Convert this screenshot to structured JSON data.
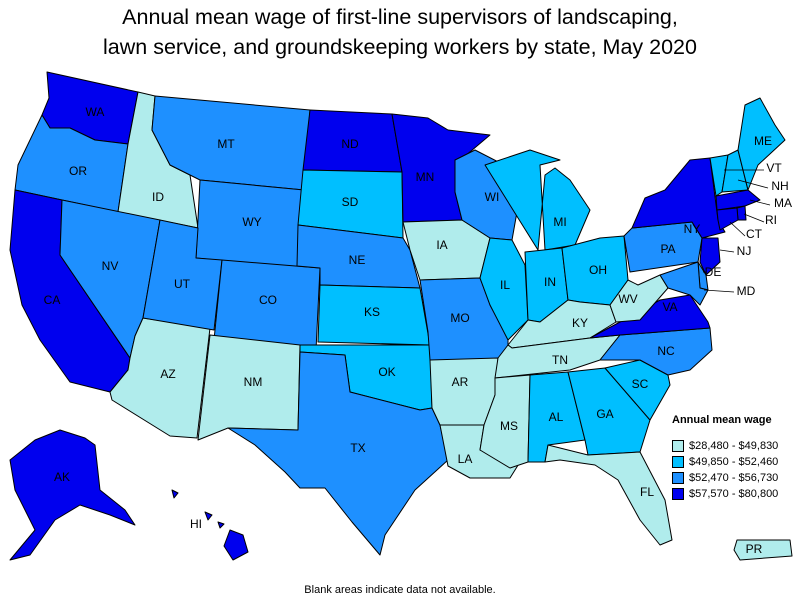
{
  "title_line1": "Annual mean wage of first-line supervisors of landscaping,",
  "title_line2": "lawn service, and groundskeeping workers by state, May 2020",
  "legend": {
    "title": "Annual mean wage",
    "items": [
      {
        "label": "$28,480 - $49,830",
        "color": "#b0ecec"
      },
      {
        "label": "$49,850 - $52,460",
        "color": "#00bfff"
      },
      {
        "label": "$52,470 - $56,730",
        "color": "#1e90ff"
      },
      {
        "label": "$57,570 - $80,800",
        "color": "#0000ee"
      }
    ]
  },
  "footnote": "Blank areas indicate data not available.",
  "states": [
    {
      "abbr": "WA",
      "tier": 3
    },
    {
      "abbr": "OR",
      "tier": 2
    },
    {
      "abbr": "CA",
      "tier": 3
    },
    {
      "abbr": "ID",
      "tier": 0
    },
    {
      "abbr": "NV",
      "tier": 2
    },
    {
      "abbr": "AZ",
      "tier": 0
    },
    {
      "abbr": "MT",
      "tier": 2
    },
    {
      "abbr": "WY",
      "tier": 2
    },
    {
      "abbr": "UT",
      "tier": 2
    },
    {
      "abbr": "CO",
      "tier": 2
    },
    {
      "abbr": "NM",
      "tier": 0
    },
    {
      "abbr": "ND",
      "tier": 3
    },
    {
      "abbr": "SD",
      "tier": 1
    },
    {
      "abbr": "NE",
      "tier": 2
    },
    {
      "abbr": "KS",
      "tier": 1
    },
    {
      "abbr": "OK",
      "tier": 1
    },
    {
      "abbr": "TX",
      "tier": 2
    },
    {
      "abbr": "MN",
      "tier": 3
    },
    {
      "abbr": "IA",
      "tier": 0
    },
    {
      "abbr": "MO",
      "tier": 2
    },
    {
      "abbr": "AR",
      "tier": 0
    },
    {
      "abbr": "LA",
      "tier": 0
    },
    {
      "abbr": "WI",
      "tier": 2
    },
    {
      "abbr": "IL",
      "tier": 1
    },
    {
      "abbr": "MI",
      "tier": 1
    },
    {
      "abbr": "IN",
      "tier": 1
    },
    {
      "abbr": "OH",
      "tier": 1
    },
    {
      "abbr": "KY",
      "tier": 0
    },
    {
      "abbr": "TN",
      "tier": 0
    },
    {
      "abbr": "MS",
      "tier": 0
    },
    {
      "abbr": "AL",
      "tier": 1
    },
    {
      "abbr": "GA",
      "tier": 1
    },
    {
      "abbr": "FL",
      "tier": 0
    },
    {
      "abbr": "SC",
      "tier": 1
    },
    {
      "abbr": "NC",
      "tier": 2
    },
    {
      "abbr": "VA",
      "tier": 3
    },
    {
      "abbr": "WV",
      "tier": 0
    },
    {
      "abbr": "PA",
      "tier": 2
    },
    {
      "abbr": "NY",
      "tier": 3
    },
    {
      "abbr": "VT",
      "tier": 1
    },
    {
      "abbr": "NH",
      "tier": 1
    },
    {
      "abbr": "ME",
      "tier": 1
    },
    {
      "abbr": "MA",
      "tier": 3
    },
    {
      "abbr": "RI",
      "tier": 3
    },
    {
      "abbr": "CT",
      "tier": 3
    },
    {
      "abbr": "NJ",
      "tier": 3
    },
    {
      "abbr": "DE",
      "tier": 2
    },
    {
      "abbr": "MD",
      "tier": 2
    },
    {
      "abbr": "AK",
      "tier": 3
    },
    {
      "abbr": "HI",
      "tier": 3
    },
    {
      "abbr": "PR",
      "tier": 0
    }
  ]
}
